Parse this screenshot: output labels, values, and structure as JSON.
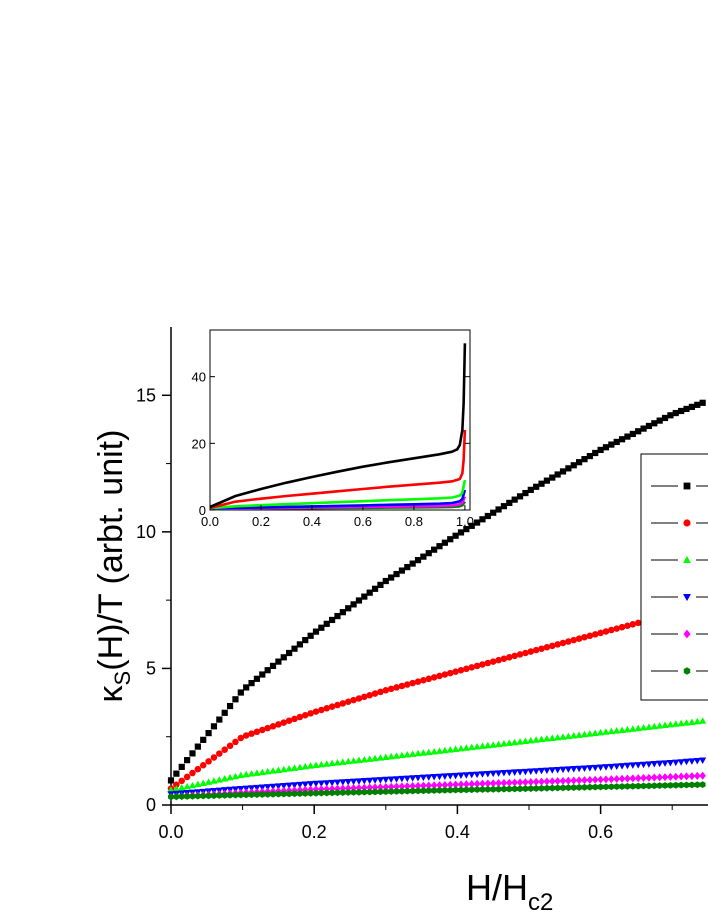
{
  "chart_data": {
    "type": "scatter",
    "xlabel": "H/H",
    "xlabel_sub": "c2",
    "ylabel_kappa": "κ",
    "ylabel_sub": "S",
    "ylabel_rest": "(H)/T (arbt. unit)",
    "xlim": [
      0,
      0.75
    ],
    "ylim": [
      0,
      17.5
    ],
    "xticks": [
      0.0,
      0.2,
      0.4,
      0.6
    ],
    "xtick_labels": [
      "0.0",
      "0.2",
      "0.4",
      "0.6"
    ],
    "yticks": [
      0,
      5,
      10,
      15
    ],
    "ytick_labels": [
      "0",
      "5",
      "10",
      "15"
    ],
    "legend": {
      "position": "right",
      "entries": 6
    },
    "series": [
      {
        "marker": "square",
        "color": "#000000",
        "points": [
          [
            0,
            0.9
          ],
          [
            0.1,
            4.2
          ],
          [
            0.2,
            6.3
          ],
          [
            0.3,
            8.2
          ],
          [
            0.4,
            9.9
          ],
          [
            0.5,
            11.5
          ],
          [
            0.6,
            13.0
          ],
          [
            0.7,
            14.3
          ],
          [
            0.75,
            14.8
          ]
        ]
      },
      {
        "marker": "circle",
        "color": "#ff0000",
        "points": [
          [
            0,
            0.6
          ],
          [
            0.1,
            2.5
          ],
          [
            0.2,
            3.4
          ],
          [
            0.3,
            4.2
          ],
          [
            0.4,
            4.9
          ],
          [
            0.5,
            5.6
          ],
          [
            0.6,
            6.3
          ],
          [
            0.7,
            7.0
          ],
          [
            0.75,
            7.3
          ]
        ]
      },
      {
        "marker": "triangle-up",
        "color": "#00ff00",
        "points": [
          [
            0,
            0.55
          ],
          [
            0.1,
            1.1
          ],
          [
            0.2,
            1.45
          ],
          [
            0.3,
            1.75
          ],
          [
            0.4,
            2.05
          ],
          [
            0.5,
            2.35
          ],
          [
            0.6,
            2.65
          ],
          [
            0.7,
            2.95
          ],
          [
            0.75,
            3.1
          ]
        ]
      },
      {
        "marker": "triangle-down",
        "color": "#0000ff",
        "points": [
          [
            0,
            0.4
          ],
          [
            0.1,
            0.6
          ],
          [
            0.2,
            0.78
          ],
          [
            0.3,
            0.93
          ],
          [
            0.4,
            1.08
          ],
          [
            0.5,
            1.23
          ],
          [
            0.6,
            1.38
          ],
          [
            0.7,
            1.55
          ],
          [
            0.75,
            1.65
          ]
        ]
      },
      {
        "marker": "diamond",
        "color": "#ff00ff",
        "points": [
          [
            0,
            0.3
          ],
          [
            0.1,
            0.45
          ],
          [
            0.2,
            0.57
          ],
          [
            0.3,
            0.66
          ],
          [
            0.4,
            0.75
          ],
          [
            0.5,
            0.84
          ],
          [
            0.6,
            0.93
          ],
          [
            0.7,
            1.03
          ],
          [
            0.75,
            1.08
          ]
        ]
      },
      {
        "marker": "hexagon",
        "color": "#008000",
        "points": [
          [
            0,
            0.3
          ],
          [
            0.1,
            0.37
          ],
          [
            0.2,
            0.43
          ],
          [
            0.3,
            0.49
          ],
          [
            0.4,
            0.55
          ],
          [
            0.5,
            0.6
          ],
          [
            0.6,
            0.66
          ],
          [
            0.7,
            0.72
          ],
          [
            0.75,
            0.75
          ]
        ]
      }
    ],
    "inset": {
      "type": "line",
      "xlim": [
        0,
        1.02
      ],
      "ylim": [
        0,
        54
      ],
      "xticks": [
        0.0,
        0.2,
        0.4,
        0.6,
        0.8,
        1.0
      ],
      "xtick_labels": [
        "0.0",
        "0.2",
        "0.4",
        "0.6",
        "0.8",
        "1.0"
      ],
      "yticks": [
        0,
        20,
        40
      ],
      "ytick_labels": [
        "0",
        "20",
        "40"
      ],
      "series": [
        {
          "color": "#000000",
          "points": [
            [
              0,
              0.9
            ],
            [
              0.1,
              4.2
            ],
            [
              0.2,
              6.3
            ],
            [
              0.3,
              8.2
            ],
            [
              0.4,
              9.9
            ],
            [
              0.5,
              11.5
            ],
            [
              0.6,
              13.0
            ],
            [
              0.7,
              14.3
            ],
            [
              0.8,
              15.5
            ],
            [
              0.9,
              16.7
            ],
            [
              0.95,
              17.5
            ],
            [
              0.97,
              18.2
            ],
            [
              0.98,
              19.5
            ],
            [
              0.99,
              24
            ],
            [
              0.995,
              32
            ],
            [
              1.0,
              50
            ]
          ]
        },
        {
          "color": "#ff0000",
          "points": [
            [
              0,
              0.6
            ],
            [
              0.1,
              2.5
            ],
            [
              0.2,
              3.4
            ],
            [
              0.3,
              4.2
            ],
            [
              0.4,
              4.9
            ],
            [
              0.5,
              5.6
            ],
            [
              0.6,
              6.3
            ],
            [
              0.7,
              7.0
            ],
            [
              0.8,
              7.6
            ],
            [
              0.9,
              8.2
            ],
            [
              0.95,
              8.6
            ],
            [
              0.98,
              9.3
            ],
            [
              0.99,
              11
            ],
            [
              0.995,
              15
            ],
            [
              1.0,
              24
            ]
          ]
        },
        {
          "color": "#00ff00",
          "points": [
            [
              0,
              0.55
            ],
            [
              0.1,
              1.1
            ],
            [
              0.2,
              1.45
            ],
            [
              0.3,
              1.75
            ],
            [
              0.4,
              2.05
            ],
            [
              0.5,
              2.35
            ],
            [
              0.6,
              2.65
            ],
            [
              0.7,
              2.95
            ],
            [
              0.8,
              3.2
            ],
            [
              0.9,
              3.5
            ],
            [
              0.95,
              3.75
            ],
            [
              0.98,
              4.3
            ],
            [
              0.99,
              5.2
            ],
            [
              1.0,
              9
            ]
          ]
        },
        {
          "color": "#0000ff",
          "points": [
            [
              0,
              0.4
            ],
            [
              0.1,
              0.6
            ],
            [
              0.2,
              0.78
            ],
            [
              0.3,
              0.93
            ],
            [
              0.4,
              1.08
            ],
            [
              0.5,
              1.23
            ],
            [
              0.6,
              1.38
            ],
            [
              0.7,
              1.55
            ],
            [
              0.8,
              1.7
            ],
            [
              0.9,
              1.9
            ],
            [
              0.95,
              2.1
            ],
            [
              0.98,
              2.6
            ],
            [
              0.99,
              3.3
            ],
            [
              1.0,
              6
            ]
          ]
        },
        {
          "color": "#ff00ff",
          "points": [
            [
              0,
              0.3
            ],
            [
              0.1,
              0.45
            ],
            [
              0.2,
              0.57
            ],
            [
              0.3,
              0.66
            ],
            [
              0.4,
              0.75
            ],
            [
              0.5,
              0.84
            ],
            [
              0.6,
              0.93
            ],
            [
              0.7,
              1.03
            ],
            [
              0.8,
              1.12
            ],
            [
              0.9,
              1.23
            ],
            [
              0.95,
              1.35
            ],
            [
              0.98,
              1.7
            ],
            [
              0.99,
              2.2
            ],
            [
              1.0,
              4
            ]
          ]
        },
        {
          "color": "#008000",
          "points": [
            [
              0,
              0.3
            ],
            [
              0.1,
              0.37
            ],
            [
              0.2,
              0.43
            ],
            [
              0.3,
              0.49
            ],
            [
              0.4,
              0.55
            ],
            [
              0.5,
              0.6
            ],
            [
              0.6,
              0.66
            ],
            [
              0.7,
              0.72
            ],
            [
              0.8,
              0.78
            ],
            [
              0.9,
              0.85
            ],
            [
              0.95,
              0.93
            ],
            [
              0.98,
              1.1
            ],
            [
              0.99,
              1.4
            ],
            [
              1.0,
              2.5
            ]
          ]
        }
      ]
    }
  }
}
